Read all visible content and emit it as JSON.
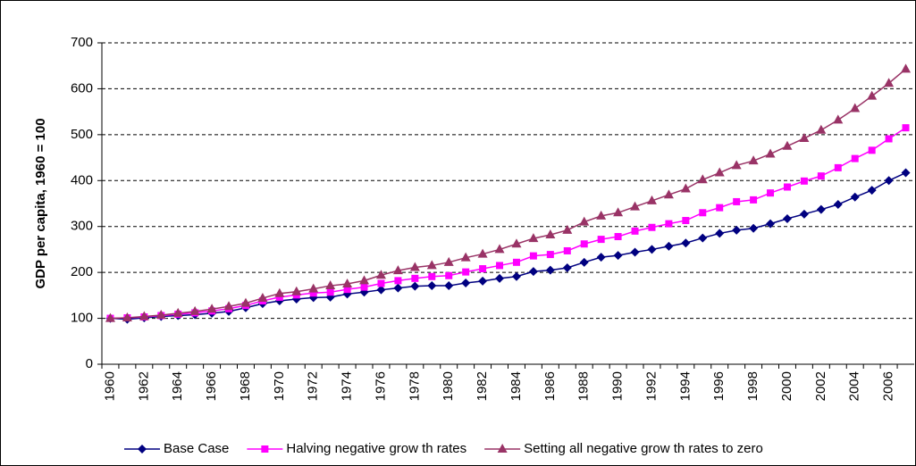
{
  "chart_data": {
    "type": "line",
    "y_label": "GDP per capita, 1960 = 100",
    "categories": [
      "1960",
      null,
      "1962",
      null,
      "1964",
      null,
      "1966",
      null,
      "1968",
      null,
      "1970",
      null,
      "1972",
      null,
      "1974",
      null,
      "1976",
      null,
      "1978",
      null,
      "1980",
      null,
      "1982",
      null,
      "1984",
      null,
      "1986",
      null,
      "1988",
      null,
      "1990",
      null,
      "1992",
      null,
      "1994",
      null,
      "1996",
      null,
      "1998",
      null,
      "2000",
      null,
      "2002",
      null,
      "2004",
      null,
      "2006",
      null
    ],
    "series": [
      {
        "name": "Base Case",
        "color": "#000080",
        "marker": "diamond",
        "values": [
          100,
          98,
          101,
          104,
          106,
          108,
          111,
          115,
          123,
          132,
          138,
          142,
          145,
          146,
          153,
          157,
          162,
          166,
          170,
          171,
          171,
          177,
          181,
          187,
          191,
          202,
          205,
          210,
          222,
          233,
          237,
          244,
          250,
          257,
          264,
          275,
          285,
          292,
          296,
          306,
          317,
          327,
          337,
          348,
          364,
          379,
          400,
          417
        ]
      },
      {
        "name": "Halving negative grow th rates",
        "color": "#ff00ff",
        "marker": "square",
        "values": [
          100,
          101,
          103,
          106,
          109,
          112,
          116,
          121,
          128,
          138,
          146,
          151,
          155,
          157,
          163,
          168,
          176,
          182,
          187,
          191,
          193,
          201,
          208,
          215,
          222,
          236,
          239,
          247,
          262,
          272,
          278,
          290,
          298,
          306,
          313,
          330,
          341,
          354,
          358,
          373,
          386,
          399,
          410,
          428,
          448,
          466,
          491,
          515
        ]
      },
      {
        "name": "Setting all negative grow th rates to zero",
        "color": "#993366",
        "marker": "triangle",
        "values": [
          100,
          101,
          104,
          107,
          111,
          115,
          120,
          126,
          133,
          144,
          154,
          158,
          164,
          171,
          175,
          182,
          194,
          204,
          211,
          215,
          222,
          232,
          240,
          250,
          262,
          274,
          282,
          292,
          310,
          323,
          330,
          343,
          356,
          369,
          382,
          402,
          417,
          433,
          443,
          458,
          475,
          492,
          510,
          532,
          557,
          584,
          612,
          643
        ]
      }
    ],
    "ylim": [
      0,
      700
    ],
    "yticks": [
      0,
      100,
      200,
      300,
      400,
      500,
      600,
      700
    ],
    "grid": true,
    "legend": "bottom"
  }
}
